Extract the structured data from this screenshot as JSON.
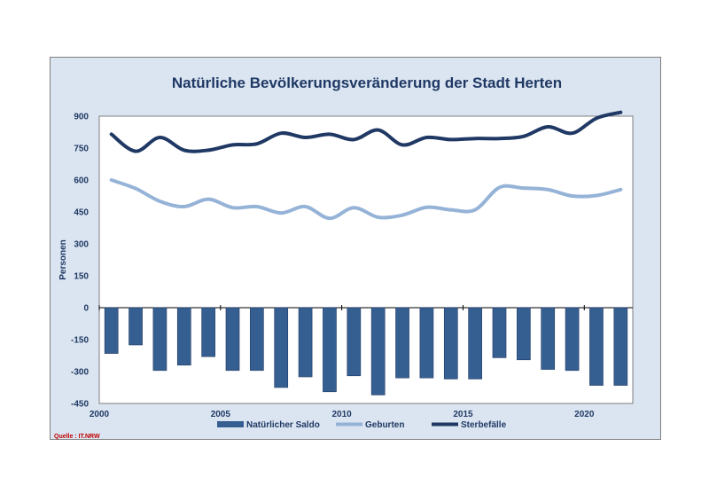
{
  "chart_data": {
    "type": "bar",
    "title": "Natürliche Bevölkerungsveränderung der Stadt Herten",
    "ylabel": "Personen",
    "xlabel": "",
    "source": "Quelle : IT.NRW",
    "ylim": [
      -450,
      900
    ],
    "yticks": [
      900,
      750,
      600,
      450,
      300,
      150,
      0,
      -150,
      -300,
      -450
    ],
    "xticks": [
      2000,
      2005,
      2010,
      2015,
      2020
    ],
    "x": [
      2000,
      2001,
      2002,
      2003,
      2004,
      2005,
      2006,
      2007,
      2008,
      2009,
      2010,
      2011,
      2012,
      2013,
      2014,
      2015,
      2016,
      2017,
      2018,
      2019,
      2020,
      2021
    ],
    "legend_position": "bottom",
    "grid": false,
    "series": [
      {
        "name": "Natürlicher Saldo",
        "type": "bar",
        "color": "#365f91",
        "values": [
          -215,
          -175,
          -295,
          -270,
          -230,
          -295,
          -295,
          -375,
          -325,
          -395,
          -320,
          -410,
          -330,
          -330,
          -335,
          -335,
          -235,
          -245,
          -290,
          -295,
          -365,
          -365
        ]
      },
      {
        "name": "Geburten",
        "type": "line",
        "color": "#95b3d7",
        "values": [
          600,
          560,
          500,
          475,
          510,
          470,
          475,
          445,
          475,
          420,
          470,
          425,
          435,
          472,
          460,
          460,
          565,
          562,
          555,
          525,
          527,
          555
        ]
      },
      {
        "name": "Sterbefälle",
        "type": "line",
        "color": "#1f3864",
        "values": [
          815,
          735,
          800,
          740,
          740,
          765,
          770,
          820,
          800,
          815,
          790,
          835,
          765,
          800,
          790,
          795,
          795,
          805,
          850,
          820,
          890,
          918
        ]
      }
    ]
  }
}
